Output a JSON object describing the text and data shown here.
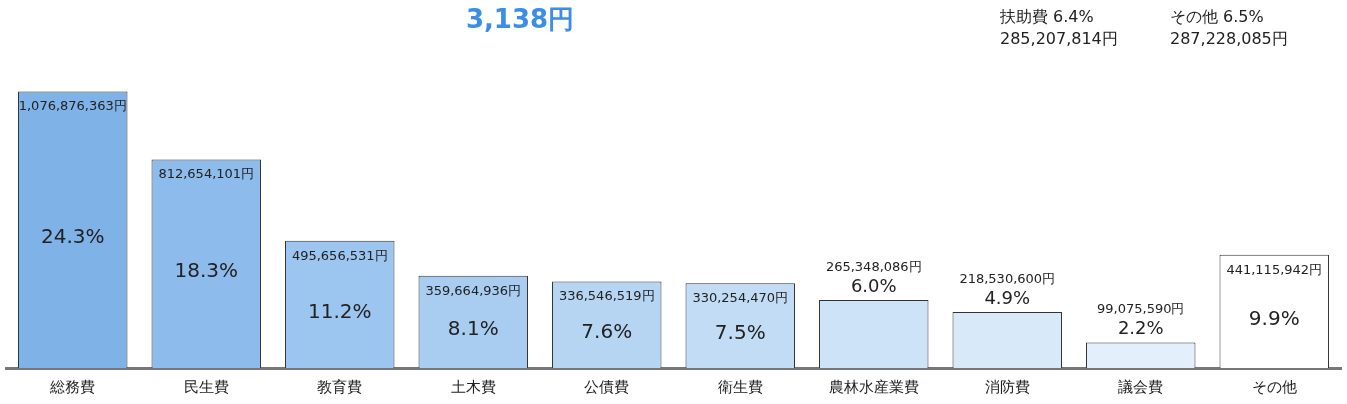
{
  "chart_data": {
    "type": "bar",
    "categories": [
      "総務費",
      "民生費",
      "教育費",
      "土木費",
      "公債費",
      "衛生費",
      "農林水産業費",
      "消防費",
      "議会費",
      "その他"
    ],
    "values": [
      1076876363,
      812654101,
      495656531,
      359664936,
      336546519,
      330254470,
      265348086,
      218530600,
      99075590,
      441115942
    ],
    "value_labels": [
      "1,076,876,363円",
      "812,654,101円",
      "495,656,531円",
      "359,664,936円",
      "336,546,519円",
      "330,254,470円",
      "265,348,086円",
      "218,530,600円",
      "99,075,590円",
      "441,115,942円"
    ],
    "colors": [
      "#7fb3e8",
      "#8dbcec",
      "#9cc5ef",
      "#a9cdf1",
      "#b6d5f3",
      "#c2dcf5",
      "#cde3f7",
      "#d8e9f9",
      "#e3f0fb",
      "#ffffff"
    ],
    "annotations": [
      "24.3%",
      "18.3%",
      "11.2%",
      "8.1%",
      "7.6%",
      "7.5%",
      "6.0%",
      "4.9%",
      "2.2%",
      "9.9%",
      "3,138円",
      "扶助費 6.4%",
      "285,207,814円",
      "その他 6.5%",
      "287,228,085円"
    ],
    "legend": false,
    "grid": false
  }
}
